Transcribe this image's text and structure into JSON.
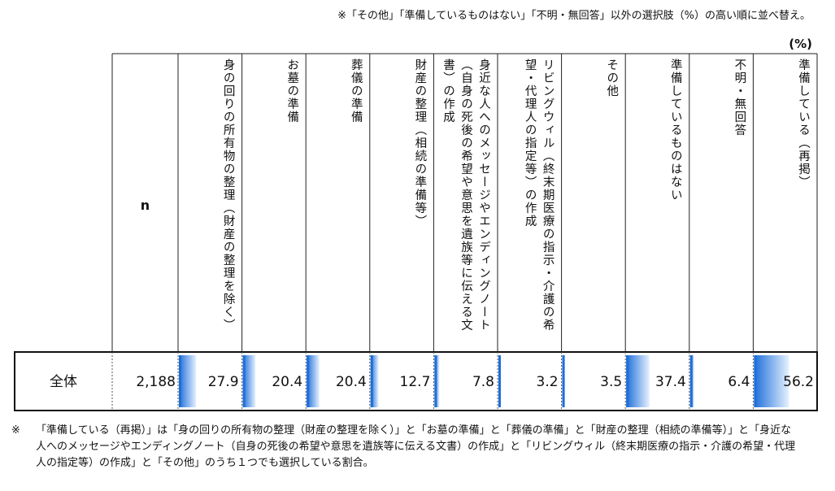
{
  "top_note": "※「その他」「準備しているものはない」「不明・無回答」以外の選択肢（%）の高い順に並べ替え。",
  "unit_label": "(%)",
  "chart_data": {
    "type": "table",
    "row_label": "全体",
    "n_header": "n",
    "n_value": "2,188",
    "categories": [
      "身の回りの所有物の整理（財産の整理を除く）",
      "お墓の準備",
      "葬儀の準備",
      "財産の整理（相続の準備等）",
      "身近な人へのメッセージやエンディングノート（自身の死後の希望や意思を遺族等に伝える文書）の作成",
      "リビングウィル（終末期医療の指示・介護の希望・代理人の指定等）の作成",
      "その他",
      "準備しているものはない",
      "不明・無回答",
      "準備している（再掲）"
    ],
    "values": [
      27.9,
      20.4,
      20.4,
      12.7,
      7.8,
      3.2,
      3.5,
      37.4,
      6.4,
      56.2
    ],
    "value_labels": [
      "27.9",
      "20.4",
      "20.4",
      "12.7",
      "7.8",
      "3.2",
      "3.5",
      "37.4",
      "6.4",
      "56.2"
    ],
    "bar_max": 100,
    "bar_color": "#1e6fd9"
  },
  "bottom_note_mark": "※",
  "bottom_note": "「準備している（再掲）」は「身の回りの所有物の整理（財産の整理を除く）」と「お墓の準備」と「葬儀の準備」と「財産の整理（相続の準備等）」と「身近な人へのメッセージやエンディングノート（自身の死後の希望や意思を遺族等に伝える文書）の作成」と「リビングウィル（終末期医療の指示・介護の希望・代理人の指定等）の作成」と「その他」のうち１つでも選択している割合。"
}
